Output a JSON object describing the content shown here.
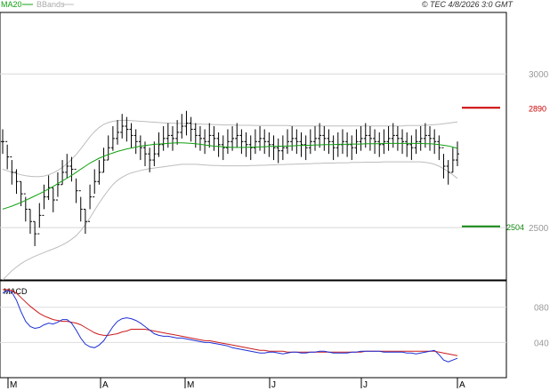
{
  "header": {
    "legend_ma": "MA20",
    "legend_bb": "BBands",
    "copyright": "© TEC 4/8/2026 3:0 GMT"
  },
  "colors": {
    "price_bars": "#000000",
    "ma20": "#11a011",
    "bbands": "#bdbdbd",
    "resistance": "#cc0000",
    "support": "#118811",
    "macd_line": "#1c2fd6",
    "signal_line": "#cc1a1a",
    "panel_border": "#000000",
    "axis_text": "#555555"
  },
  "chart_data": [
    {
      "type": "ohlc",
      "title": "",
      "x_labels": [
        "M",
        "A",
        "M",
        "J",
        "J",
        "A"
      ],
      "y_ticks": [
        "3000",
        "2500"
      ],
      "ylim": [
        2330,
        3200
      ],
      "grid": true,
      "resistance": {
        "value": 2890,
        "label": "2890"
      },
      "support": {
        "value": 2504,
        "label": "2504"
      },
      "series": [
        {
          "name": "MA20",
          "values": [
            2560,
            2565,
            2570,
            2576,
            2582,
            2589,
            2596,
            2603,
            2610,
            2618,
            2626,
            2634,
            2643,
            2652,
            2661,
            2670,
            2680,
            2690,
            2700,
            2710,
            2718,
            2726,
            2732,
            2738,
            2743,
            2748,
            2752,
            2756,
            2759,
            2762,
            2765,
            2767,
            2769,
            2771,
            2772,
            2773,
            2774,
            2775,
            2776,
            2776,
            2775,
            2774,
            2773,
            2771,
            2769,
            2767,
            2765,
            2764,
            2763,
            2762,
            2761,
            2761,
            2761,
            2761,
            2762,
            2762,
            2763,
            2763,
            2764,
            2764,
            2765,
            2765,
            2766,
            2766,
            2767,
            2767,
            2768,
            2768,
            2769,
            2769,
            2770,
            2770,
            2770,
            2771,
            2771,
            2771,
            2772,
            2772,
            2772,
            2773,
            2773,
            2773,
            2773,
            2774,
            2774,
            2774,
            2774,
            2774,
            2774,
            2774,
            2774,
            2774,
            2773,
            2773,
            2772,
            2770,
            2768,
            2766,
            2762,
            2758
          ]
        },
        {
          "name": "BBands",
          "upper": [
            2690,
            2685,
            2680,
            2676,
            2672,
            2669,
            2667,
            2666,
            2666,
            2668,
            2672,
            2678,
            2686,
            2696,
            2708,
            2722,
            2738,
            2756,
            2776,
            2796,
            2812,
            2826,
            2836,
            2842,
            2846,
            2848,
            2849,
            2849,
            2848,
            2847,
            2846,
            2845,
            2844,
            2843,
            2842,
            2841,
            2840,
            2840,
            2839,
            2839,
            2838,
            2838,
            2837,
            2837,
            2836,
            2836,
            2835,
            2835,
            2834,
            2834,
            2834,
            2833,
            2833,
            2833,
            2833,
            2832,
            2832,
            2832,
            2832,
            2832,
            2832,
            2832,
            2832,
            2831,
            2831,
            2831,
            2831,
            2831,
            2831,
            2831,
            2831,
            2831,
            2831,
            2831,
            2831,
            2831,
            2831,
            2831,
            2831,
            2831,
            2831,
            2831,
            2831,
            2831,
            2831,
            2831,
            2831,
            2831,
            2832,
            2832,
            2832,
            2832,
            2833,
            2834,
            2835,
            2836,
            2838,
            2840,
            2842,
            2844
          ],
          "lower": [
            2330,
            2345,
            2360,
            2372,
            2383,
            2392,
            2400,
            2407,
            2413,
            2419,
            2425,
            2431,
            2437,
            2444,
            2452,
            2462,
            2474,
            2490,
            2510,
            2532,
            2556,
            2580,
            2602,
            2622,
            2640,
            2654,
            2664,
            2672,
            2678,
            2682,
            2686,
            2689,
            2692,
            2694,
            2696,
            2698,
            2700,
            2702,
            2704,
            2706,
            2706,
            2706,
            2706,
            2705,
            2704,
            2703,
            2702,
            2702,
            2701,
            2701,
            2701,
            2701,
            2701,
            2701,
            2702,
            2702,
            2703,
            2703,
            2704,
            2704,
            2705,
            2705,
            2706,
            2706,
            2707,
            2707,
            2708,
            2708,
            2709,
            2709,
            2710,
            2710,
            2710,
            2711,
            2711,
            2711,
            2712,
            2712,
            2712,
            2713,
            2713,
            2713,
            2713,
            2714,
            2714,
            2714,
            2714,
            2714,
            2714,
            2714,
            2714,
            2714,
            2712,
            2710,
            2706,
            2700,
            2692,
            2682,
            2672,
            2660
          ]
        },
        {
          "name": "Price",
          "close": [
            2780,
            2730,
            2680,
            2650,
            2610,
            2560,
            2520,
            2480,
            2540,
            2600,
            2630,
            2590,
            2640,
            2680,
            2700,
            2690,
            2620,
            2560,
            2520,
            2600,
            2650,
            2680,
            2720,
            2760,
            2790,
            2810,
            2830,
            2820,
            2800,
            2780,
            2760,
            2740,
            2720,
            2740,
            2770,
            2790,
            2800,
            2790,
            2810,
            2830,
            2840,
            2820,
            2800,
            2790,
            2780,
            2800,
            2790,
            2770,
            2760,
            2780,
            2790,
            2800,
            2780,
            2770,
            2760,
            2780,
            2790,
            2780,
            2770,
            2760,
            2750,
            2760,
            2780,
            2790,
            2780,
            2770,
            2760,
            2780,
            2790,
            2800,
            2790,
            2780,
            2760,
            2770,
            2780,
            2770,
            2760,
            2780,
            2790,
            2800,
            2790,
            2780,
            2770,
            2780,
            2790,
            2800,
            2790,
            2780,
            2770,
            2760,
            2780,
            2790,
            2800,
            2790,
            2780,
            2760,
            2700,
            2680,
            2720,
            2740
          ],
          "high": [
            2820,
            2770,
            2720,
            2690,
            2650,
            2600,
            2560,
            2520,
            2580,
            2640,
            2670,
            2630,
            2680,
            2720,
            2740,
            2730,
            2660,
            2600,
            2560,
            2640,
            2690,
            2720,
            2760,
            2800,
            2830,
            2850,
            2870,
            2860,
            2840,
            2820,
            2800,
            2780,
            2760,
            2780,
            2810,
            2830,
            2840,
            2830,
            2850,
            2870,
            2880,
            2860,
            2840,
            2830,
            2820,
            2840,
            2830,
            2810,
            2800,
            2820,
            2830,
            2840,
            2820,
            2810,
            2800,
            2820,
            2830,
            2820,
            2810,
            2800,
            2790,
            2800,
            2820,
            2830,
            2820,
            2810,
            2800,
            2820,
            2830,
            2840,
            2830,
            2820,
            2800,
            2810,
            2820,
            2810,
            2800,
            2820,
            2830,
            2840,
            2830,
            2820,
            2810,
            2820,
            2830,
            2840,
            2830,
            2820,
            2810,
            2800,
            2820,
            2830,
            2840,
            2830,
            2820,
            2800,
            2740,
            2720,
            2760,
            2780
          ],
          "low": [
            2740,
            2690,
            2640,
            2610,
            2570,
            2520,
            2480,
            2440,
            2500,
            2560,
            2590,
            2550,
            2600,
            2640,
            2660,
            2650,
            2580,
            2520,
            2480,
            2560,
            2610,
            2640,
            2680,
            2720,
            2750,
            2770,
            2790,
            2780,
            2760,
            2740,
            2720,
            2700,
            2680,
            2700,
            2730,
            2750,
            2760,
            2750,
            2770,
            2790,
            2800,
            2780,
            2760,
            2750,
            2740,
            2760,
            2750,
            2730,
            2720,
            2740,
            2750,
            2760,
            2740,
            2730,
            2720,
            2740,
            2750,
            2740,
            2730,
            2720,
            2710,
            2720,
            2740,
            2750,
            2740,
            2730,
            2720,
            2740,
            2750,
            2760,
            2750,
            2740,
            2720,
            2730,
            2740,
            2730,
            2720,
            2740,
            2750,
            2760,
            2750,
            2740,
            2730,
            2740,
            2750,
            2760,
            2750,
            2740,
            2730,
            2720,
            2740,
            2750,
            2760,
            2750,
            2740,
            2720,
            2660,
            2640,
            2680,
            2700
          ]
        }
      ]
    },
    {
      "type": "line",
      "title": "MACD",
      "y_ticks": [
        "080",
        "040"
      ],
      "ylim": [
        0,
        110
      ],
      "grid": true,
      "series": [
        {
          "name": "MACD",
          "values": [
            96,
            99,
            97,
            88,
            75,
            64,
            58,
            56,
            57,
            60,
            62,
            61,
            63,
            66,
            66,
            62,
            54,
            45,
            38,
            35,
            34,
            37,
            42,
            50,
            58,
            64,
            67,
            68,
            67,
            65,
            62,
            58,
            54,
            50,
            48,
            47,
            47,
            46,
            45,
            45,
            44,
            43,
            42,
            41,
            40,
            40,
            39,
            38,
            37,
            36,
            34,
            33,
            32,
            31,
            30,
            29,
            28,
            28,
            29,
            29,
            28,
            27,
            28,
            29,
            29,
            28,
            28,
            29,
            29,
            30,
            30,
            29,
            28,
            28,
            28,
            28,
            29,
            29,
            30,
            30,
            30,
            30,
            30,
            29,
            29,
            29,
            29,
            29,
            28,
            28,
            27,
            28,
            29,
            30,
            31,
            26,
            20,
            18,
            20,
            22
          ]
        },
        {
          "name": "Signal",
          "values": [
            100,
            100,
            99,
            96,
            91,
            86,
            81,
            77,
            73,
            70,
            68,
            66,
            65,
            64,
            64,
            63,
            62,
            60,
            57,
            54,
            51,
            49,
            48,
            48,
            49,
            50,
            52,
            53,
            55,
            55,
            55,
            55,
            54,
            53,
            52,
            51,
            50,
            49,
            48,
            47,
            46,
            45,
            44,
            43,
            42,
            42,
            41,
            40,
            39,
            38,
            37,
            36,
            35,
            34,
            33,
            32,
            31,
            31,
            30,
            30,
            30,
            30,
            29,
            29,
            29,
            29,
            29,
            29,
            29,
            29,
            29,
            29,
            29,
            29,
            29,
            29,
            29,
            29,
            29,
            30,
            30,
            30,
            30,
            30,
            30,
            30,
            30,
            30,
            30,
            30,
            30,
            30,
            30,
            30,
            30,
            29,
            28,
            27,
            26,
            25
          ]
        }
      ]
    }
  ]
}
